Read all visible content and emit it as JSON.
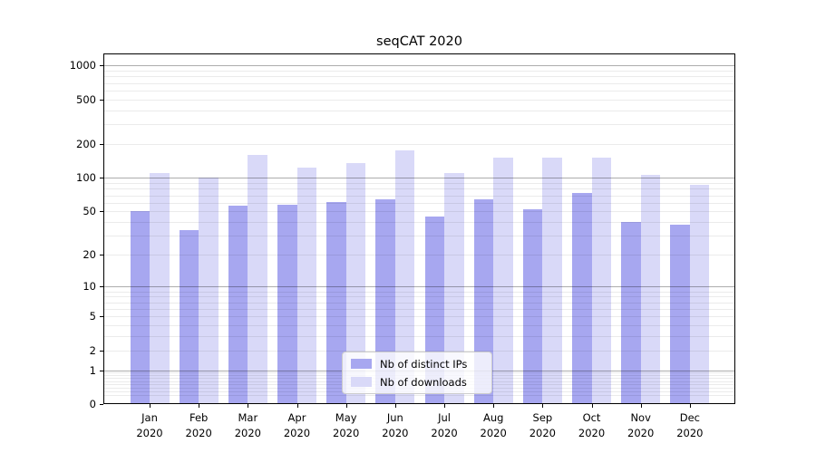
{
  "chart_data": {
    "type": "bar",
    "title": "seqCAT 2020",
    "categories": [
      "Jan",
      "Feb",
      "Mar",
      "Apr",
      "May",
      "Jun",
      "Jul",
      "Aug",
      "Sep",
      "Oct",
      "Nov",
      "Dec"
    ],
    "year_label": "2020",
    "series": [
      {
        "name": "Nb of distinct IPs",
        "color": "#a7a7f0",
        "values": [
          50,
          34,
          56,
          58,
          61,
          64,
          45,
          64,
          52,
          73,
          40,
          38
        ]
      },
      {
        "name": "Nb of downloads",
        "color": "#d9d9f8",
        "values": [
          110,
          100,
          160,
          123,
          135,
          175,
          110,
          153,
          152,
          152,
          107,
          87
        ]
      }
    ],
    "yscale": "log1p",
    "ylim": [
      0,
      1270
    ],
    "yticks": [
      0,
      1,
      2,
      5,
      10,
      20,
      50,
      100,
      200,
      500,
      1000
    ],
    "major_gridlines": [
      1,
      10,
      100,
      1000
    ],
    "minor_gridlines": [
      0.2,
      0.3,
      0.4,
      0.5,
      0.6,
      0.7,
      0.8,
      0.9,
      2,
      3,
      4,
      5,
      6,
      7,
      8,
      9,
      20,
      30,
      40,
      50,
      60,
      70,
      80,
      90,
      200,
      300,
      400,
      500,
      600,
      700,
      800,
      900
    ],
    "grid": true,
    "legend_position": "lower center",
    "xlabel": "",
    "ylabel": ""
  }
}
